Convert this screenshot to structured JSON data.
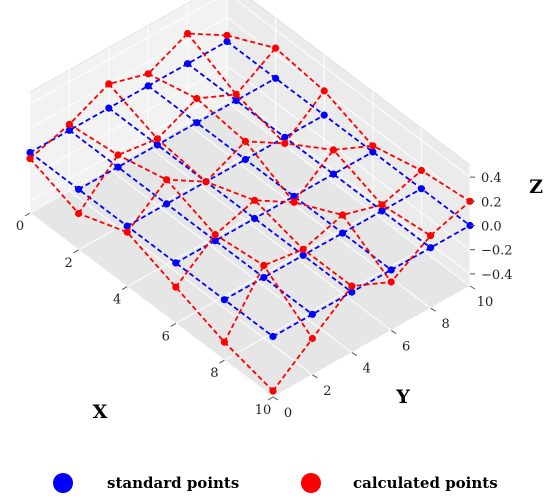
{
  "chart_data": {
    "type": "scatter",
    "projection": "3d",
    "xlabel": "X",
    "ylabel": "Y",
    "zlabel": "Z",
    "xlim": [
      0,
      10
    ],
    "ylim": [
      0,
      10
    ],
    "zlim": [
      -0.5,
      0.5
    ],
    "x_ticks": [
      "0",
      "2",
      "4",
      "6",
      "8",
      "10"
    ],
    "y_ticks": [
      "0",
      "2",
      "4",
      "6",
      "8",
      "10"
    ],
    "z_ticks": [
      "−0.4",
      "−0.2",
      "0.0",
      "0.2",
      "0.4"
    ],
    "grid": true,
    "legend_position": "bottom",
    "grid_x": [
      0,
      2,
      4,
      6,
      8,
      10
    ],
    "grid_y": [
      0,
      2,
      4,
      6,
      8,
      10
    ],
    "series": [
      {
        "name": "standard points",
        "color": "#0000ff",
        "line_style": "dashed",
        "z": [
          [
            0,
            0,
            0,
            0,
            0,
            0
          ],
          [
            0,
            0,
            0,
            0,
            0,
            0
          ],
          [
            0,
            0,
            0,
            0,
            0,
            0
          ],
          [
            0,
            0,
            0,
            0,
            0,
            0
          ],
          [
            0,
            0,
            0,
            0,
            0,
            0
          ],
          [
            0,
            0,
            0,
            0,
            0,
            0
          ]
        ]
      },
      {
        "name": "calculated points",
        "color": "#ff0000",
        "line_style": "dashed",
        "z": [
          [
            -0.05,
            0.05,
            0.2,
            0.1,
            0.25,
            0.05
          ],
          [
            -0.2,
            0.1,
            0.05,
            0.2,
            0.05,
            0.25
          ],
          [
            -0.05,
            0.2,
            0.0,
            0.15,
            -0.05,
            0.2
          ],
          [
            -0.2,
            0.05,
            0.15,
            -0.05,
            0.2,
            0.05
          ],
          [
            -0.35,
            0.1,
            0.05,
            0.15,
            0.05,
            0.15
          ],
          [
            -0.45,
            -0.2,
            0.05,
            -0.1,
            0.1,
            0.2
          ]
        ]
      }
    ]
  }
}
